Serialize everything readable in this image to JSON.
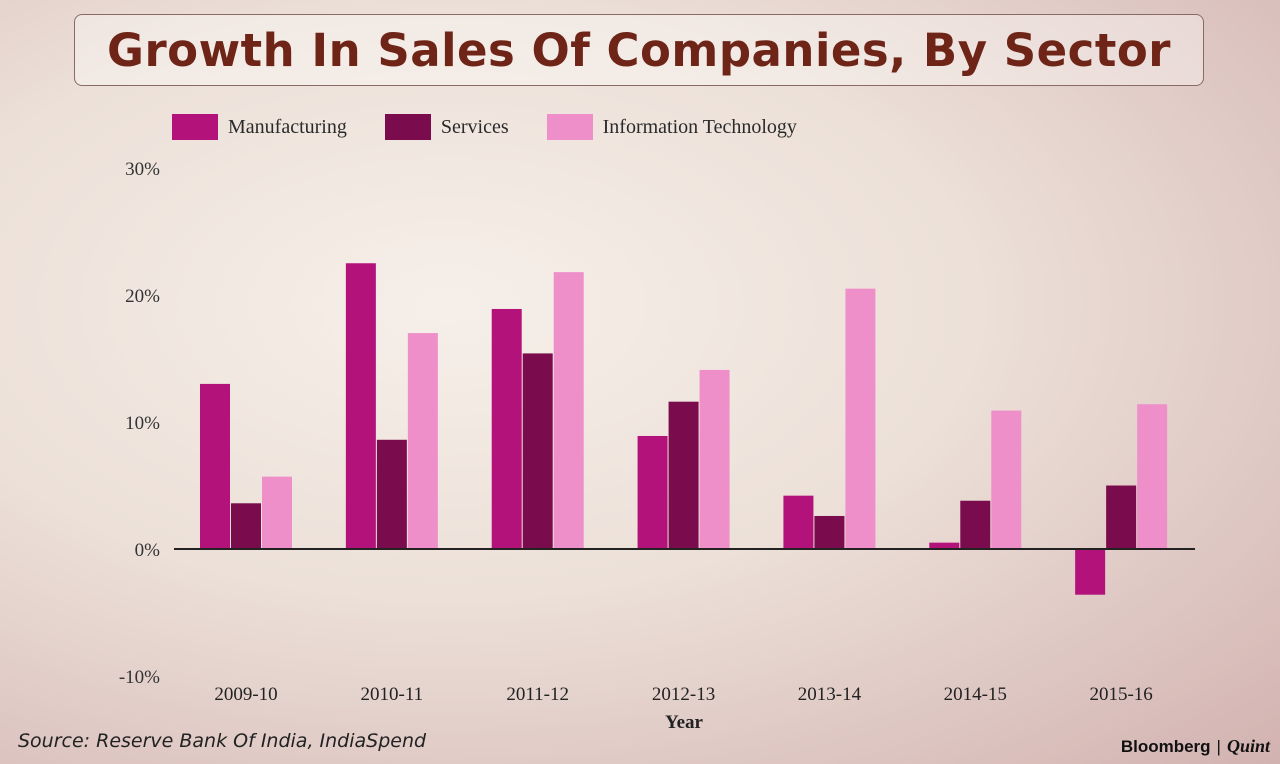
{
  "colors": {
    "manufacturing": "#b3127a",
    "services": "#7a0c4e",
    "it": "#ee8fca",
    "title": "#6e2417",
    "axis": "#222222"
  },
  "footer": {
    "source": "Source: Reserve Bank Of India, IndiaSpend",
    "brand_primary": "Bloomberg",
    "brand_separator": "|",
    "brand_secondary": "Quint"
  },
  "chart_data": {
    "type": "bar",
    "title": "Growth In Sales Of Companies, By Sector",
    "xlabel": "Year",
    "ylabel": "",
    "categories": [
      "2009-10",
      "2010-11",
      "2011-12",
      "2012-13",
      "2013-14",
      "2014-15",
      "2015-16"
    ],
    "series": [
      {
        "name": "Manufacturing",
        "color_key": "manufacturing",
        "values": [
          13.0,
          22.5,
          18.9,
          8.9,
          4.2,
          0.5,
          -3.6
        ]
      },
      {
        "name": "Services",
        "color_key": "services",
        "values": [
          3.6,
          8.6,
          15.4,
          11.6,
          2.6,
          3.8,
          5.0
        ]
      },
      {
        "name": "Information Technology",
        "color_key": "it",
        "values": [
          5.7,
          17.0,
          21.8,
          14.1,
          20.5,
          10.9,
          11.4
        ]
      }
    ],
    "yticks": [
      "30%",
      "20%",
      "10%",
      "0%",
      "-10%"
    ],
    "ytick_values": [
      30,
      20,
      10,
      0,
      -10
    ],
    "ylim": [
      -10,
      30
    ],
    "grid": false,
    "legend_position": "top-left"
  }
}
